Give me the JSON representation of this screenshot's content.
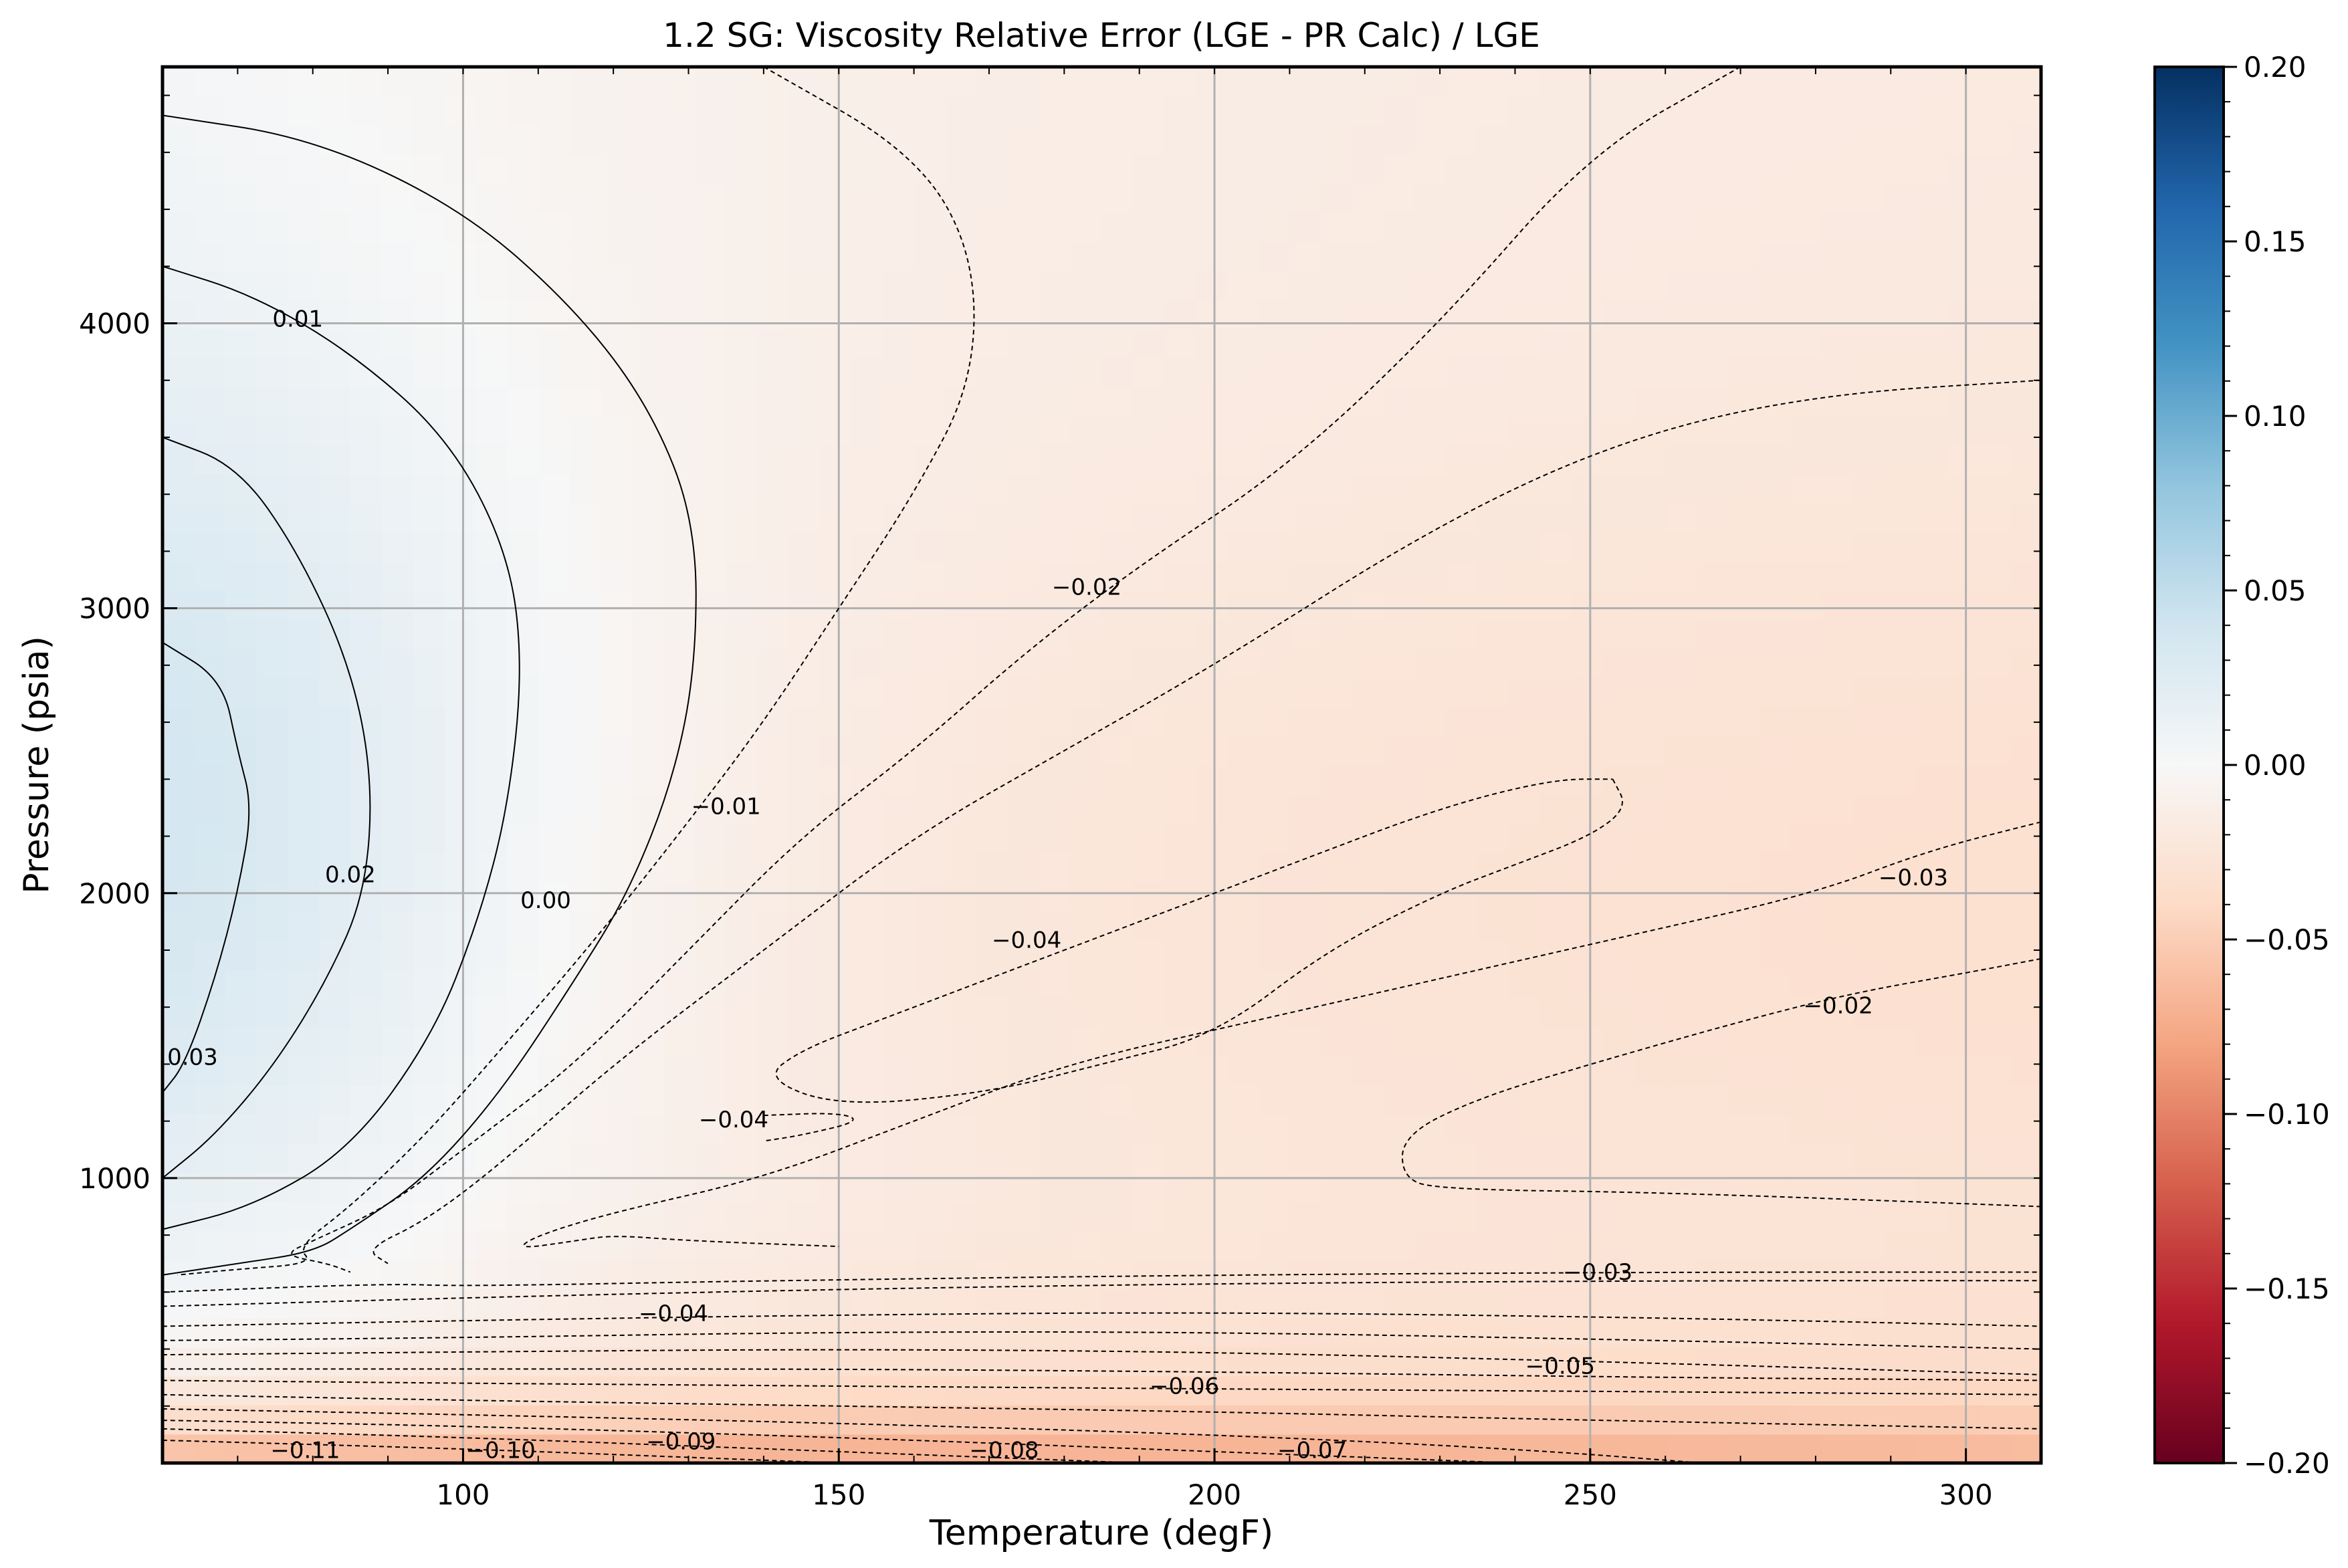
{
  "chart_data": {
    "type": "heatmap",
    "title": "1.2 SG: Viscosity Relative Error (LGE - PR Calc) / LGE",
    "xlabel": "Temperature (degF)",
    "ylabel": "Pressure (psia)",
    "xlim": [
      60,
      310
    ],
    "ylim": [
      0,
      4900
    ],
    "x_ticks": [
      "100",
      "150",
      "200",
      "250",
      "300"
    ],
    "x_tick_values": [
      100,
      150,
      200,
      250,
      300
    ],
    "y_ticks": [
      "1000",
      "2000",
      "3000",
      "4000"
    ],
    "y_tick_values": [
      1000,
      2000,
      3000,
      4000
    ],
    "grid": true,
    "colormap": "RdBu",
    "colorbar": {
      "vmin": -0.2,
      "vmax": 0.2,
      "ticks": [
        "0.20",
        "0.15",
        "0.10",
        "0.05",
        "0.00",
        "−0.05",
        "−0.10",
        "−0.15",
        "−0.20"
      ],
      "tick_values": [
        0.2,
        0.15,
        0.1,
        0.05,
        0.0,
        -0.05,
        -0.1,
        -0.15,
        -0.2
      ],
      "colors": [
        "#053061",
        "#2166ac",
        "#4393c3",
        "#92c5de",
        "#d1e5f0",
        "#f7f7f7",
        "#fddbc7",
        "#f4a582",
        "#d6604d",
        "#b2182b",
        "#67001f"
      ]
    },
    "contour_labels": [
      {
        "text": "0.01",
        "x": 78,
        "y": 4010
      },
      {
        "text": "0.02",
        "x": 85,
        "y": 2060
      },
      {
        "text": "0.03",
        "x": 64,
        "y": 1420
      },
      {
        "text": "0.00",
        "x": 111,
        "y": 1970
      },
      {
        "text": "−0.01",
        "x": 135,
        "y": 2300
      },
      {
        "text": "−0.02",
        "x": 183,
        "y": 3070
      },
      {
        "text": "−0.04",
        "x": 136,
        "y": 1200
      },
      {
        "text": "−0.04",
        "x": 175,
        "y": 1830
      },
      {
        "text": "−0.03",
        "x": 293,
        "y": 2050
      },
      {
        "text": "−0.02",
        "x": 283,
        "y": 1600
      },
      {
        "text": "−0.03",
        "x": 251,
        "y": 665
      },
      {
        "text": "−0.04",
        "x": 128,
        "y": 520
      },
      {
        "text": "−0.05",
        "x": 246,
        "y": 335
      },
      {
        "text": "−0.06",
        "x": 196,
        "y": 265
      },
      {
        "text": "−0.07",
        "x": 213,
        "y": 40
      },
      {
        "text": "−0.08",
        "x": 172,
        "y": 40
      },
      {
        "text": "−0.09",
        "x": 129,
        "y": 70
      },
      {
        "text": "−0.10",
        "x": 105,
        "y": 40
      },
      {
        "text": "−0.11",
        "x": 79,
        "y": 40
      }
    ],
    "contour_lines": [
      {
        "level": -0.11,
        "points": [
          [
            60,
            80
          ],
          [
            100,
            50
          ],
          [
            130,
            20
          ],
          [
            150,
            0
          ]
        ]
      },
      {
        "level": -0.1,
        "points": [
          [
            60,
            120
          ],
          [
            100,
            90
          ],
          [
            140,
            50
          ],
          [
            170,
            20
          ],
          [
            190,
            0
          ]
        ]
      },
      {
        "level": -0.09,
        "points": [
          [
            60,
            150
          ],
          [
            100,
            130
          ],
          [
            150,
            90
          ],
          [
            190,
            50
          ],
          [
            220,
            20
          ],
          [
            240,
            0
          ]
        ]
      },
      {
        "level": -0.08,
        "points": [
          [
            60,
            190
          ],
          [
            100,
            170
          ],
          [
            150,
            140
          ],
          [
            200,
            100
          ],
          [
            240,
            50
          ],
          [
            265,
            0
          ]
        ]
      },
      {
        "level": -0.07,
        "points": [
          [
            60,
            240
          ],
          [
            100,
            220
          ],
          [
            150,
            200
          ],
          [
            200,
            180
          ],
          [
            250,
            150
          ],
          [
            310,
            120
          ]
        ]
      },
      {
        "level": -0.06,
        "points": [
          [
            60,
            290
          ],
          [
            100,
            280
          ],
          [
            150,
            270
          ],
          [
            200,
            260
          ],
          [
            260,
            250
          ],
          [
            310,
            240
          ]
        ]
      },
      {
        "level": -0.055,
        "points": [
          [
            60,
            330
          ],
          [
            100,
            330
          ],
          [
            150,
            330
          ],
          [
            200,
            320
          ],
          [
            260,
            300
          ],
          [
            310,
            290
          ]
        ]
      },
      {
        "level": -0.05,
        "points": [
          [
            60,
            380
          ],
          [
            100,
            390
          ],
          [
            150,
            400
          ],
          [
            200,
            390
          ],
          [
            260,
            350
          ],
          [
            310,
            310
          ]
        ]
      },
      {
        "level": -0.045,
        "points": [
          [
            60,
            430
          ],
          [
            100,
            440
          ],
          [
            150,
            460
          ],
          [
            200,
            460
          ],
          [
            260,
            430
          ],
          [
            310,
            400
          ]
        ]
      },
      {
        "level": -0.04,
        "points": [
          [
            60,
            480
          ],
          [
            100,
            500
          ],
          [
            150,
            520
          ],
          [
            200,
            530
          ],
          [
            260,
            510
          ],
          [
            310,
            480
          ]
        ]
      },
      {
        "level": -0.035,
        "points": [
          [
            60,
            550
          ],
          [
            100,
            580
          ],
          [
            150,
            610
          ],
          [
            200,
            630
          ],
          [
            260,
            640
          ],
          [
            310,
            640
          ]
        ]
      },
      {
        "level": -0.03,
        "points": [
          [
            60,
            600
          ],
          [
            90,
            630
          ],
          [
            100,
            620
          ],
          [
            140,
            640
          ],
          [
            200,
            660
          ],
          [
            260,
            670
          ],
          [
            310,
            670
          ]
        ]
      },
      {
        "level": 0.03,
        "points": [
          [
            60,
            2880
          ],
          [
            68,
            2750
          ],
          [
            70,
            2500
          ],
          [
            72,
            2300
          ],
          [
            70,
            2000
          ],
          [
            67,
            1700
          ],
          [
            63,
            1400
          ],
          [
            60,
            1300
          ]
        ]
      },
      {
        "level": 0.02,
        "points": [
          [
            60,
            3600
          ],
          [
            70,
            3500
          ],
          [
            78,
            3200
          ],
          [
            85,
            2800
          ],
          [
            88,
            2400
          ],
          [
            87,
            2000
          ],
          [
            82,
            1700
          ],
          [
            75,
            1400
          ],
          [
            67,
            1150
          ],
          [
            60,
            1000
          ]
        ]
      },
      {
        "level": 0.01,
        "points": [
          [
            60,
            4200
          ],
          [
            72,
            4100
          ],
          [
            85,
            3900
          ],
          [
            98,
            3600
          ],
          [
            106,
            3200
          ],
          [
            108,
            2800
          ],
          [
            106,
            2300
          ],
          [
            102,
            1900
          ],
          [
            96,
            1500
          ],
          [
            85,
            1100
          ],
          [
            72,
            900
          ],
          [
            60,
            820
          ]
        ]
      },
      {
        "level": 0.0,
        "points": [
          [
            60,
            4730
          ],
          [
            80,
            4650
          ],
          [
            100,
            4400
          ],
          [
            115,
            4050
          ],
          [
            125,
            3700
          ],
          [
            131,
            3300
          ],
          [
            131,
            2800
          ],
          [
            128,
            2400
          ],
          [
            122,
            2000
          ],
          [
            115,
            1700
          ],
          [
            105,
            1300
          ],
          [
            95,
            1000
          ],
          [
            85,
            820
          ],
          [
            80,
            740
          ],
          [
            70,
            700
          ],
          [
            60,
            660
          ]
        ]
      },
      {
        "level": -0.01,
        "points": [
          [
            140,
            4900
          ],
          [
            160,
            4600
          ],
          [
            168,
            4250
          ],
          [
            168,
            3800
          ],
          [
            160,
            3400
          ],
          [
            150,
            3000
          ],
          [
            140,
            2600
          ],
          [
            130,
            2250
          ],
          [
            118,
            1850
          ],
          [
            105,
            1450
          ],
          [
            95,
            1150
          ],
          [
            85,
            900
          ],
          [
            78,
            760
          ],
          [
            80,
            700
          ],
          [
            70,
            680
          ],
          [
            62,
            660
          ]
        ]
      },
      {
        "level": -0.02,
        "points": [
          [
            270,
            4900
          ],
          [
            250,
            4600
          ],
          [
            230,
            4000
          ],
          [
            210,
            3500
          ],
          [
            190,
            3150
          ],
          [
            175,
            2850
          ],
          [
            160,
            2500
          ],
          [
            145,
            2200
          ],
          [
            130,
            1800
          ],
          [
            115,
            1400
          ],
          [
            100,
            1100
          ],
          [
            90,
            900
          ],
          [
            80,
            780
          ],
          [
            76,
            730
          ],
          [
            82,
            700
          ],
          [
            85,
            670
          ]
        ]
      },
      {
        "level": -0.025,
        "points": [
          [
            310,
            3800
          ],
          [
            280,
            3750
          ],
          [
            255,
            3600
          ],
          [
            230,
            3300
          ],
          [
            200,
            2800
          ],
          [
            180,
            2500
          ],
          [
            160,
            2200
          ],
          [
            140,
            1800
          ],
          [
            120,
            1400
          ],
          [
            105,
            1050
          ],
          [
            95,
            850
          ],
          [
            87,
            750
          ],
          [
            90,
            700
          ]
        ]
      },
      {
        "level": -0.03,
        "points": [
          [
            310,
            2250
          ],
          [
            295,
            2150
          ],
          [
            280,
            2000
          ],
          [
            255,
            1850
          ],
          [
            230,
            1700
          ],
          [
            205,
            1550
          ],
          [
            180,
            1400
          ],
          [
            160,
            1200
          ],
          [
            140,
            1000
          ],
          [
            120,
            880
          ],
          [
            110,
            800
          ],
          [
            107,
            750
          ],
          [
            115,
            780
          ],
          [
            120,
            800
          ],
          [
            130,
            780
          ],
          [
            150,
            760
          ]
        ]
      },
      {
        "level": -0.02,
        "points": [
          [
            310,
            1770
          ],
          [
            300,
            1720
          ],
          [
            285,
            1650
          ],
          [
            270,
            1550
          ],
          [
            250,
            1400
          ],
          [
            235,
            1280
          ],
          [
            225,
            1150
          ],
          [
            225,
            1000
          ],
          [
            230,
            960
          ],
          [
            260,
            950
          ],
          [
            310,
            900
          ]
        ]
      },
      {
        "level": -0.04,
        "points": [
          [
            253,
            2400
          ],
          [
            255,
            2300
          ],
          [
            250,
            2200
          ],
          [
            240,
            2100
          ],
          [
            230,
            2000
          ],
          [
            215,
            1800
          ],
          [
            200,
            1500
          ],
          [
            185,
            1400
          ],
          [
            170,
            1300
          ],
          [
            150,
            1250
          ],
          [
            140,
            1350
          ],
          [
            145,
            1450
          ],
          [
            155,
            1550
          ],
          [
            170,
            1700
          ],
          [
            190,
            1900
          ],
          [
            210,
            2100
          ],
          [
            230,
            2300
          ],
          [
            245,
            2400
          ],
          [
            253,
            2400
          ]
        ]
      },
      {
        "level": -0.04,
        "points": [
          [
            140,
            1220
          ],
          [
            150,
            1230
          ],
          [
            153,
            1200
          ],
          [
            145,
            1150
          ],
          [
            140,
            1130
          ]
        ]
      }
    ]
  }
}
